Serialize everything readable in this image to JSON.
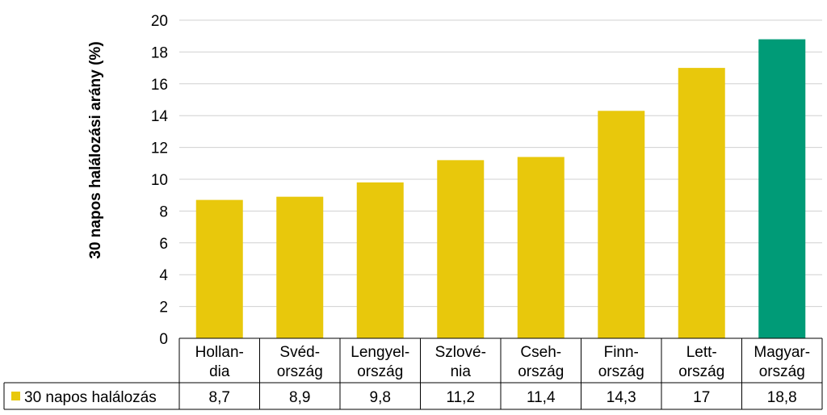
{
  "chart_data": {
    "type": "bar",
    "ylabel": "30 napos halálozási arány (%)",
    "ylim": [
      0,
      20
    ],
    "yticks": [
      0,
      2,
      4,
      6,
      8,
      10,
      12,
      14,
      16,
      18,
      20
    ],
    "grid": true,
    "categories": [
      [
        "Hollan-",
        "dia"
      ],
      [
        "Svéd-",
        "ország"
      ],
      [
        "Lengyel-",
        "ország"
      ],
      [
        "Szlové-",
        "nia"
      ],
      [
        "Cseh-",
        "ország"
      ],
      [
        "Finn-",
        "ország"
      ],
      [
        "Lett-",
        "ország"
      ],
      [
        "Magyar-",
        "ország"
      ]
    ],
    "series": [
      {
        "name": "30 napos halálozás",
        "values": [
          8.7,
          8.9,
          9.8,
          11.2,
          11.4,
          14.3,
          17,
          18.8
        ],
        "value_labels": [
          "8,7",
          "8,9",
          "9,8",
          "11,2",
          "11,4",
          "14,3",
          "17",
          "18,8"
        ],
        "color": "#e8c80c",
        "highlight_color": "#009b77",
        "highlight_index": 7
      }
    ],
    "legend_placement": "data-table-left"
  }
}
